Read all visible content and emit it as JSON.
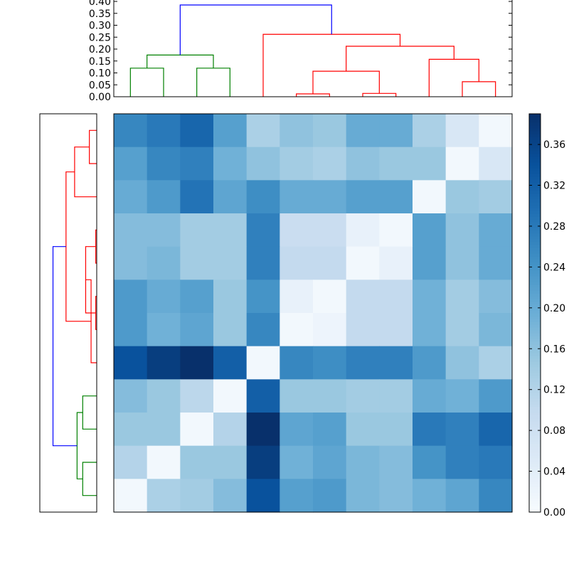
{
  "chart_data": [
    {
      "type": "dendrogram",
      "orientation": "top",
      "ylim": [
        0,
        0.4
      ],
      "y_ticks": [
        "0.00",
        "0.05",
        "0.10",
        "0.15",
        "0.20",
        "0.25",
        "0.30",
        "0.35",
        "0.40"
      ],
      "y_tick_values": [
        0,
        0.05,
        0.1,
        0.15,
        0.2,
        0.25,
        0.3,
        0.35,
        0.4
      ],
      "links": [
        {
          "left": 0,
          "right": 1,
          "height": 0.12,
          "color": "#008000"
        },
        {
          "left": 2,
          "right": 3,
          "height": 0.12,
          "color": "#008000"
        },
        {
          "left": 0.5,
          "right": 2.5,
          "height": 0.175,
          "color": "#008000"
        },
        {
          "left": 5,
          "right": 6,
          "height": 0.012,
          "color": "#ff0000"
        },
        {
          "left": 7,
          "right": 8,
          "height": 0.014,
          "color": "#ff0000"
        },
        {
          "left": 5.5,
          "right": 7.5,
          "height": 0.107,
          "color": "#ff0000"
        },
        {
          "left": 10,
          "right": 11,
          "height": 0.063,
          "color": "#ff0000"
        },
        {
          "left": 9,
          "right": 10.5,
          "height": 0.157,
          "color": "#ff0000"
        },
        {
          "left": 6.5,
          "right": 9.75,
          "height": 0.212,
          "color": "#ff0000"
        },
        {
          "left": 4,
          "right": 8.125,
          "height": 0.262,
          "color": "#ff0000"
        },
        {
          "left": 1.5,
          "right": 6.0625,
          "height": 0.385,
          "color": "#0000ff"
        }
      ]
    },
    {
      "type": "dendrogram",
      "orientation": "left",
      "links": [
        {
          "top": 0,
          "bottom": 1,
          "height": 0.03,
          "color": "#ff0000"
        },
        {
          "top": 0.5,
          "bottom": 2,
          "height": 0.09,
          "color": "#ff0000"
        },
        {
          "top": 3,
          "bottom": 4,
          "height": 0.004,
          "color": "#ff0000"
        },
        {
          "top": 5,
          "bottom": 6,
          "height": 0.004,
          "color": "#ff0000"
        },
        {
          "top": 3.5,
          "bottom": 5.5,
          "height": 0.045,
          "color": "#ff0000"
        },
        {
          "top": 4.5,
          "bottom": 7,
          "height": 0.023,
          "color": "#ff0000"
        },
        {
          "top": 1.25,
          "bottom": 5.75,
          "height": 0.125,
          "color": "#ff0000"
        },
        {
          "top": 8,
          "bottom": 9,
          "height": 0.057,
          "color": "#008000"
        },
        {
          "top": 10,
          "bottom": 11,
          "height": 0.057,
          "color": "#008000"
        },
        {
          "top": 8.5,
          "bottom": 10.5,
          "height": 0.08,
          "color": "#008000"
        },
        {
          "top": 3.5,
          "bottom": 9.5,
          "height": 0.178,
          "color": "#0000ff"
        }
      ],
      "xlim": [
        0.22,
        0
      ]
    },
    {
      "type": "heatmap",
      "cmap": "Blues",
      "vmin": 0,
      "vmax": 0.39,
      "values": [
        [
          0.26,
          0.28,
          0.31,
          0.22,
          0.13,
          0.16,
          0.15,
          0.2,
          0.2,
          0.13,
          0.06,
          0.01
        ],
        [
          0.22,
          0.26,
          0.27,
          0.19,
          0.16,
          0.14,
          0.13,
          0.16,
          0.15,
          0.15,
          0.01,
          0.06
        ],
        [
          0.2,
          0.23,
          0.29,
          0.21,
          0.25,
          0.2,
          0.2,
          0.22,
          0.22,
          0.01,
          0.15,
          0.14
        ],
        [
          0.17,
          0.17,
          0.14,
          0.14,
          0.27,
          0.09,
          0.09,
          0.03,
          0.01,
          0.22,
          0.16,
          0.2
        ],
        [
          0.17,
          0.18,
          0.14,
          0.14,
          0.27,
          0.1,
          0.1,
          0.01,
          0.03,
          0.22,
          0.16,
          0.2
        ],
        [
          0.23,
          0.2,
          0.22,
          0.15,
          0.24,
          0.03,
          0.01,
          0.1,
          0.1,
          0.19,
          0.14,
          0.17
        ],
        [
          0.23,
          0.19,
          0.21,
          0.15,
          0.26,
          0.01,
          0.02,
          0.1,
          0.1,
          0.19,
          0.14,
          0.18
        ],
        [
          0.34,
          0.37,
          0.39,
          0.32,
          0.01,
          0.26,
          0.25,
          0.27,
          0.27,
          0.23,
          0.16,
          0.13
        ],
        [
          0.17,
          0.15,
          0.11,
          0.01,
          0.32,
          0.15,
          0.15,
          0.14,
          0.14,
          0.2,
          0.19,
          0.23
        ],
        [
          0.15,
          0.15,
          0.01,
          0.12,
          0.39,
          0.21,
          0.22,
          0.15,
          0.15,
          0.28,
          0.27,
          0.31
        ],
        [
          0.12,
          0.01,
          0.15,
          0.15,
          0.37,
          0.19,
          0.21,
          0.18,
          0.17,
          0.24,
          0.27,
          0.28
        ],
        [
          0.01,
          0.13,
          0.14,
          0.17,
          0.34,
          0.22,
          0.23,
          0.18,
          0.17,
          0.19,
          0.21,
          0.26
        ]
      ]
    },
    {
      "type": "colorbar",
      "ticks": [
        "0.00",
        "0.04",
        "0.08",
        "0.12",
        "0.16",
        "0.20",
        "0.24",
        "0.28",
        "0.32",
        "0.36"
      ],
      "tick_values": [
        0,
        0.04,
        0.08,
        0.12,
        0.16,
        0.2,
        0.24,
        0.28,
        0.32,
        0.36
      ]
    }
  ]
}
